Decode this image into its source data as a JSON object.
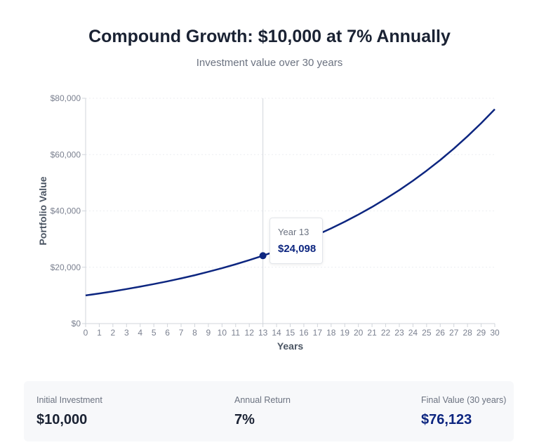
{
  "header": {
    "title": "Compound Growth: $10,000 at 7% Annually",
    "subtitle": "Investment value over 30 years"
  },
  "chart_data": {
    "type": "line",
    "title": "Compound Growth: $10,000 at 7% Annually",
    "subtitle": "Investment value over 30 years",
    "xlabel": "Years",
    "ylabel": "Portfolio Value",
    "xlim": [
      0,
      30
    ],
    "ylim": [
      0,
      80000
    ],
    "x": [
      0,
      1,
      2,
      3,
      4,
      5,
      6,
      7,
      8,
      9,
      10,
      11,
      12,
      13,
      14,
      15,
      16,
      17,
      18,
      19,
      20,
      21,
      22,
      23,
      24,
      25,
      26,
      27,
      28,
      29,
      30
    ],
    "y_ticks": [
      0,
      20000,
      40000,
      60000,
      80000
    ],
    "y_tick_labels": [
      "$0",
      "$20,000",
      "$40,000",
      "$60,000",
      "$80,000"
    ],
    "grid": "horizontal dotted",
    "line_color": "#0d2680",
    "series": [
      {
        "values": [
          10000,
          10700,
          11449,
          12250,
          13108,
          14026,
          15007,
          16058,
          17182,
          18385,
          19672,
          21049,
          22522,
          24098,
          25785,
          27590,
          29522,
          31588,
          33799,
          36165,
          38697,
          41406,
          44304,
          47405,
          50724,
          54274,
          58074,
          62139,
          66488,
          71143,
          76123
        ]
      }
    ],
    "tooltip": {
      "x": 13,
      "label": "Year 13",
      "value": "$24,098"
    }
  },
  "stats": [
    {
      "label": "Initial Investment",
      "value": "$10,000"
    },
    {
      "label": "Annual Return",
      "value": "7%"
    },
    {
      "label": "Final Value (30 years)",
      "value": "$76,123"
    }
  ]
}
